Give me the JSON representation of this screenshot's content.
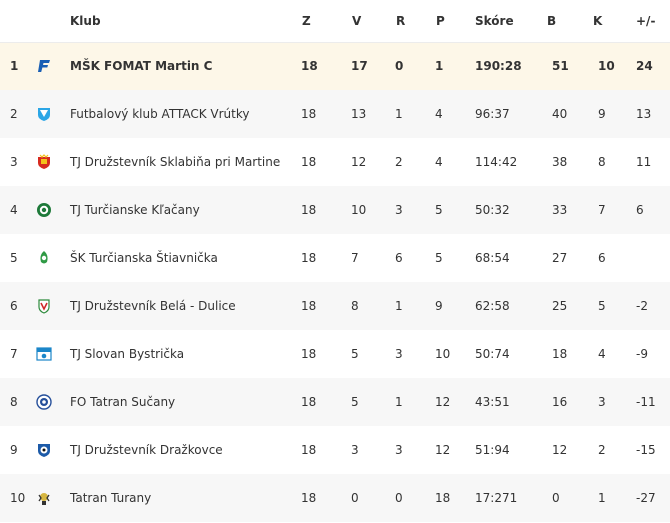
{
  "header": {
    "club": "Klub",
    "z": "Z",
    "v": "V",
    "r": "R",
    "p": "P",
    "score": "Skóre",
    "b": "B",
    "k": "K",
    "diff": "+/-"
  },
  "rows": [
    {
      "pos": "1",
      "club": "MŠK FOMAT Martin C",
      "z": "18",
      "v": "17",
      "r": "0",
      "p": "1",
      "score": "190:28",
      "b": "51",
      "k": "10",
      "diff": "24",
      "logo": "fomat-f-logo"
    },
    {
      "pos": "2",
      "club": "Futbalový klub ATTACK Vrútky",
      "z": "18",
      "v": "13",
      "r": "1",
      "p": "4",
      "score": "96:37",
      "b": "40",
      "k": "9",
      "diff": "13",
      "logo": "attack-shield-logo"
    },
    {
      "pos": "3",
      "club": "TJ Družstevník Sklabiňa pri Martine",
      "z": "18",
      "v": "12",
      "r": "2",
      "p": "4",
      "score": "114:42",
      "b": "38",
      "k": "8",
      "diff": "11",
      "logo": "sklabina-crest-logo"
    },
    {
      "pos": "4",
      "club": "TJ Turčianske Kľačany",
      "z": "18",
      "v": "10",
      "r": "3",
      "p": "5",
      "score": "50:32",
      "b": "33",
      "k": "7",
      "diff": "6",
      "logo": "klacany-round-logo"
    },
    {
      "pos": "5",
      "club": "ŠK Turčianska Štiavnička",
      "z": "18",
      "v": "7",
      "r": "6",
      "p": "5",
      "score": "68:54",
      "b": "27",
      "k": "6",
      "diff": "",
      "logo": "stiavnicka-logo"
    },
    {
      "pos": "6",
      "club": "TJ Družstevník Belá - Dulice",
      "z": "18",
      "v": "8",
      "r": "1",
      "p": "9",
      "score": "62:58",
      "b": "25",
      "k": "5",
      "diff": "-2",
      "logo": "bela-dulice-logo"
    },
    {
      "pos": "7",
      "club": "TJ Slovan Bystrička",
      "z": "18",
      "v": "5",
      "r": "3",
      "p": "10",
      "score": "50:74",
      "b": "18",
      "k": "4",
      "diff": "-9",
      "logo": "bystricka-logo"
    },
    {
      "pos": "8",
      "club": "FO Tatran Sučany",
      "z": "18",
      "v": "5",
      "r": "1",
      "p": "12",
      "score": "43:51",
      "b": "16",
      "k": "3",
      "diff": "-11",
      "logo": "sucany-round-logo"
    },
    {
      "pos": "9",
      "club": "TJ Družstevník Dražkovce",
      "z": "18",
      "v": "3",
      "r": "3",
      "p": "12",
      "score": "51:94",
      "b": "12",
      "k": "2",
      "diff": "-15",
      "logo": "drazkovce-shield-logo"
    },
    {
      "pos": "10",
      "club": "Tatran Turany",
      "z": "18",
      "v": "0",
      "r": "0",
      "p": "18",
      "score": "17:271",
      "b": "0",
      "k": "1",
      "diff": "-27",
      "logo": "turany-logo"
    }
  ],
  "colors": {
    "highlight_row": "#fdf7e8",
    "alt_row": "#f7f7f7"
  }
}
